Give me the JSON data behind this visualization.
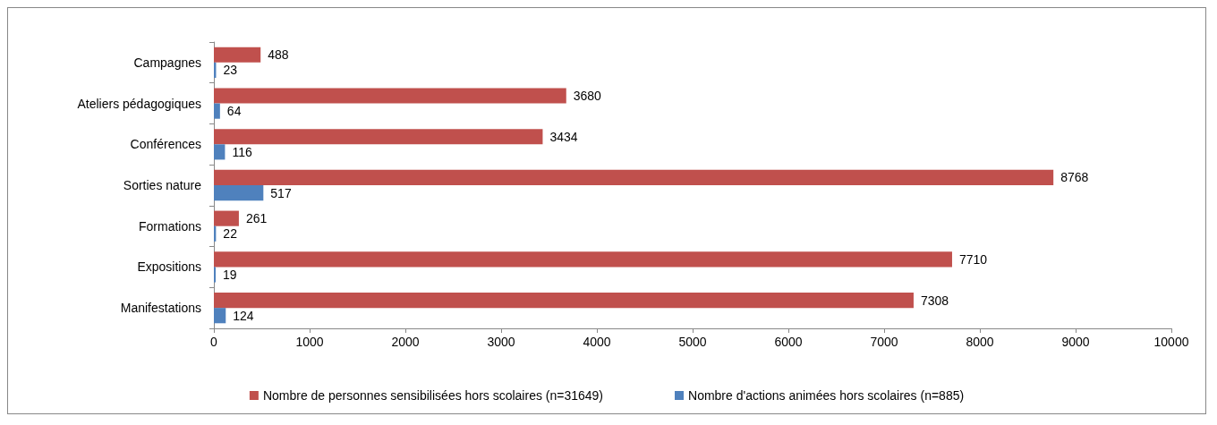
{
  "chart_data": {
    "type": "bar",
    "orientation": "horizontal",
    "categories": [
      "Campagnes",
      "Ateliers pédagogiques",
      "Conférences",
      "Sorties nature",
      "Formations",
      "Expositions",
      "Manifestations"
    ],
    "series": [
      {
        "name": "Nombre de personnes sensibilisées hors scolaires (n=31649)",
        "color": "#c0504d",
        "values": [
          488,
          3680,
          3434,
          8768,
          261,
          7710,
          7308
        ]
      },
      {
        "name": "Nombre d'actions animées hors scolaires (n=885)",
        "color": "#4f81bd",
        "values": [
          23,
          64,
          116,
          517,
          22,
          19,
          124
        ]
      }
    ],
    "xlim": [
      0,
      10000
    ],
    "xticks": [
      0,
      1000,
      2000,
      3000,
      4000,
      5000,
      6000,
      7000,
      8000,
      9000,
      10000
    ],
    "grid": false,
    "legend": "bottom",
    "data_labels": true
  }
}
